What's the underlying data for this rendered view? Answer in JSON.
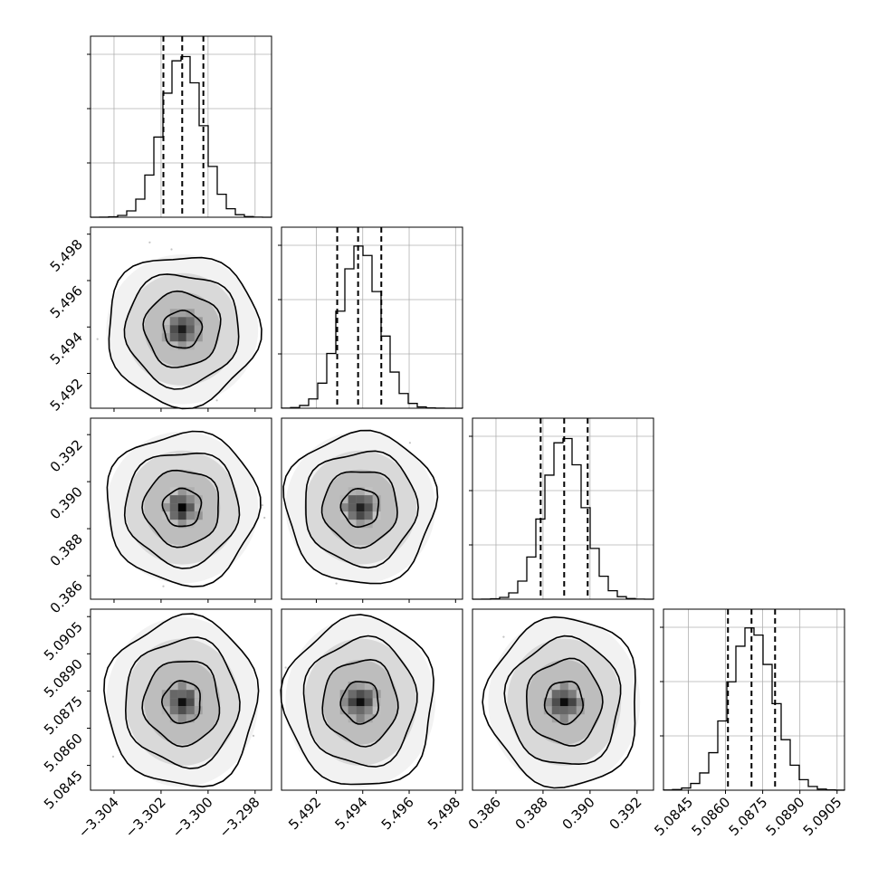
{
  "chart_data": {
    "type": "corner",
    "title": "",
    "n_parameters": 4,
    "parameters": [
      {
        "label": "",
        "mean": -3.3011,
        "std": 0.00085,
        "quantiles": [
          -3.3019,
          -3.3011,
          -3.3002
        ],
        "range": [
          -3.305,
          -3.2973
        ],
        "ticks": [
          -3.304,
          -3.302,
          -3.3,
          -3.298
        ],
        "tick_labels": [
          "−3.304",
          "−3.302",
          "−3.300",
          "−3.298"
        ],
        "hist_peak_fraction": 1.0
      },
      {
        "label": "",
        "mean": 5.4939,
        "std": 0.00085,
        "quantiles": [
          5.4929,
          5.4938,
          5.4948
        ],
        "range": [
          5.4905,
          5.4983
        ],
        "ticks": [
          5.492,
          5.494,
          5.496,
          5.498
        ],
        "tick_labels": [
          "5.492",
          "5.494",
          "5.496",
          "5.498"
        ],
        "hist_peak_fraction": 1.0
      },
      {
        "label": "",
        "mean": 0.3889,
        "std": 0.00085,
        "quantiles": [
          0.3879,
          0.3889,
          0.3899
        ],
        "range": [
          0.385,
          0.3927
        ],
        "ticks": [
          0.386,
          0.388,
          0.39,
          0.392
        ],
        "tick_labels": [
          "0.386",
          "0.388",
          "0.390",
          "0.392"
        ],
        "hist_peak_fraction": 1.0
      },
      {
        "label": "",
        "mean": 5.08705,
        "std": 0.0009,
        "quantiles": [
          5.0861,
          5.08705,
          5.088
        ],
        "range": [
          5.0835,
          5.0908
        ],
        "ticks": [
          5.0845,
          5.086,
          5.0875,
          5.089,
          5.0905
        ],
        "tick_labels": [
          "5.0845",
          "5.0860",
          "5.0875",
          "5.0890",
          "5.0905"
        ],
        "hist_peak_fraction": 1.0
      }
    ],
    "diagonal": "histogram",
    "off_diagonal": "2d density with contours and scatter",
    "contour_levels_sigma": [
      0.5,
      1.0,
      1.5,
      2.0
    ],
    "quantile_lines": [
      0.16,
      0.5,
      0.84
    ],
    "grid": true,
    "colors": {
      "line": "#000000",
      "points": "#7a7a7a",
      "grid": "#b0b0b0"
    }
  }
}
